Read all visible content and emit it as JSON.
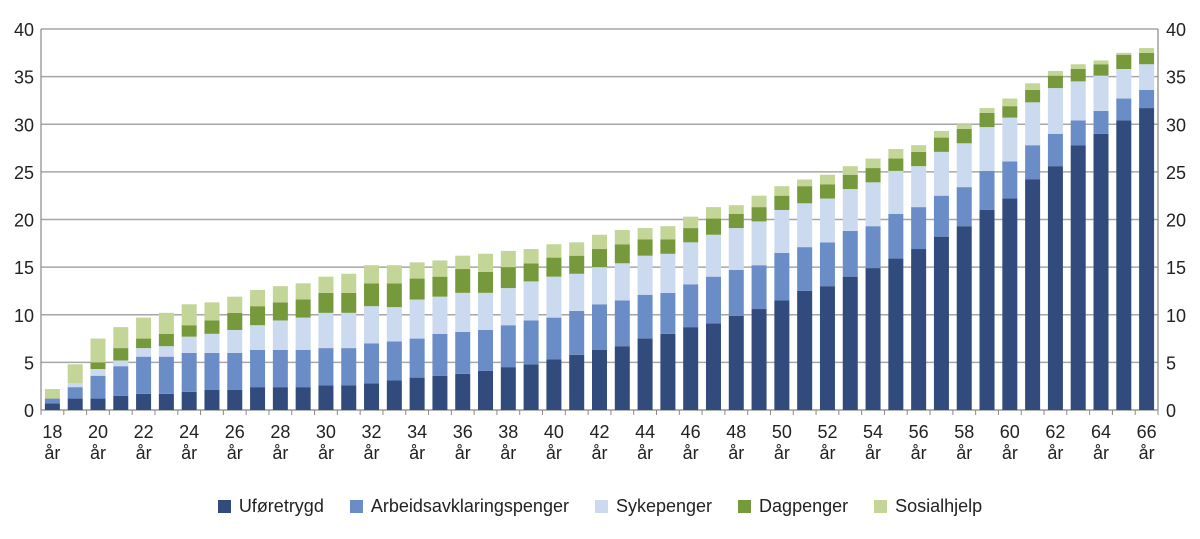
{
  "chart_data": {
    "type": "bar",
    "stacked": true,
    "title": "",
    "xlabel": "",
    "ylabel": "",
    "ylim": [
      0,
      40
    ],
    "yticks": [
      0,
      5,
      10,
      15,
      20,
      25,
      30,
      35,
      40
    ],
    "y_axis_both_sides": true,
    "grid": true,
    "legend_position": "bottom",
    "age_unit": "år",
    "categories": [
      18,
      19,
      20,
      21,
      22,
      23,
      24,
      25,
      26,
      27,
      28,
      29,
      30,
      31,
      32,
      33,
      34,
      35,
      36,
      37,
      38,
      39,
      40,
      41,
      42,
      43,
      44,
      45,
      46,
      47,
      48,
      49,
      50,
      51,
      52,
      53,
      54,
      55,
      56,
      57,
      58,
      59,
      60,
      61,
      62,
      63,
      64,
      65,
      66
    ],
    "series": [
      {
        "name": "Uføretrygd",
        "color": "#314b7c",
        "values": [
          0.7,
          1.2,
          1.2,
          1.5,
          1.7,
          1.7,
          1.9,
          2.1,
          2.1,
          2.4,
          2.4,
          2.4,
          2.6,
          2.6,
          2.8,
          3.1,
          3.4,
          3.6,
          3.8,
          4.1,
          4.5,
          4.8,
          5.3,
          5.8,
          6.3,
          6.7,
          7.5,
          8.0,
          8.7,
          9.1,
          9.9,
          10.6,
          11.5,
          12.5,
          13.0,
          14.0,
          14.9,
          15.9,
          16.9,
          18.2,
          19.3,
          21.0,
          22.2,
          24.2,
          25.6,
          27.8,
          29.0,
          30.4,
          31.7
        ]
      },
      {
        "name": "Arbeidsavklaringspenger",
        "color": "#6a8dc8",
        "values": [
          0.5,
          1.2,
          2.4,
          3.1,
          3.9,
          3.9,
          4.1,
          3.9,
          3.9,
          3.9,
          3.9,
          3.9,
          3.9,
          3.9,
          4.2,
          4.1,
          4.1,
          4.4,
          4.4,
          4.3,
          4.4,
          4.6,
          4.4,
          4.6,
          4.8,
          4.8,
          4.6,
          4.3,
          4.5,
          4.9,
          4.8,
          4.6,
          5.0,
          4.6,
          4.6,
          4.8,
          4.4,
          4.7,
          4.4,
          4.3,
          4.1,
          4.1,
          3.9,
          3.6,
          3.4,
          2.6,
          2.4,
          2.3,
          1.9
        ]
      },
      {
        "name": "Sykepenger",
        "color": "#ccdaf0",
        "values": [
          0.0,
          0.4,
          0.7,
          0.6,
          0.9,
          1.1,
          1.7,
          2.0,
          2.4,
          2.6,
          3.1,
          3.4,
          3.7,
          3.7,
          3.9,
          3.6,
          4.1,
          3.9,
          4.1,
          3.9,
          3.9,
          4.1,
          4.3,
          3.9,
          3.9,
          3.9,
          4.1,
          4.1,
          4.4,
          4.4,
          4.4,
          4.6,
          4.5,
          4.6,
          4.6,
          4.4,
          4.6,
          4.5,
          4.3,
          4.6,
          4.6,
          4.6,
          4.6,
          4.5,
          4.8,
          4.1,
          3.7,
          3.1,
          2.7
        ]
      },
      {
        "name": "Dagpenger",
        "color": "#76993b",
        "values": [
          0.0,
          0.0,
          0.7,
          1.3,
          1.0,
          1.3,
          1.2,
          1.4,
          1.8,
          2.0,
          1.9,
          1.9,
          2.1,
          2.1,
          2.4,
          2.5,
          2.2,
          2.1,
          2.5,
          2.2,
          2.2,
          1.9,
          2.0,
          1.9,
          1.9,
          2.0,
          1.7,
          1.5,
          1.5,
          1.7,
          1.5,
          1.5,
          1.5,
          1.8,
          1.5,
          1.5,
          1.5,
          1.3,
          1.5,
          1.5,
          1.5,
          1.5,
          1.2,
          1.3,
          1.3,
          1.3,
          1.2,
          1.5,
          1.2
        ]
      },
      {
        "name": "Sosialhjelp",
        "color": "#c3d597",
        "values": [
          1.0,
          2.0,
          2.5,
          2.2,
          2.2,
          2.2,
          2.2,
          1.9,
          1.7,
          1.7,
          1.7,
          1.7,
          1.7,
          2.0,
          1.9,
          1.9,
          1.7,
          1.7,
          1.4,
          1.9,
          1.7,
          1.5,
          1.4,
          1.4,
          1.5,
          1.5,
          1.2,
          1.4,
          1.2,
          1.2,
          0.9,
          1.2,
          1.0,
          0.7,
          1.0,
          0.9,
          1.0,
          1.0,
          0.7,
          0.7,
          0.5,
          0.5,
          0.8,
          0.7,
          0.5,
          0.5,
          0.4,
          0.2,
          0.5
        ]
      }
    ]
  }
}
